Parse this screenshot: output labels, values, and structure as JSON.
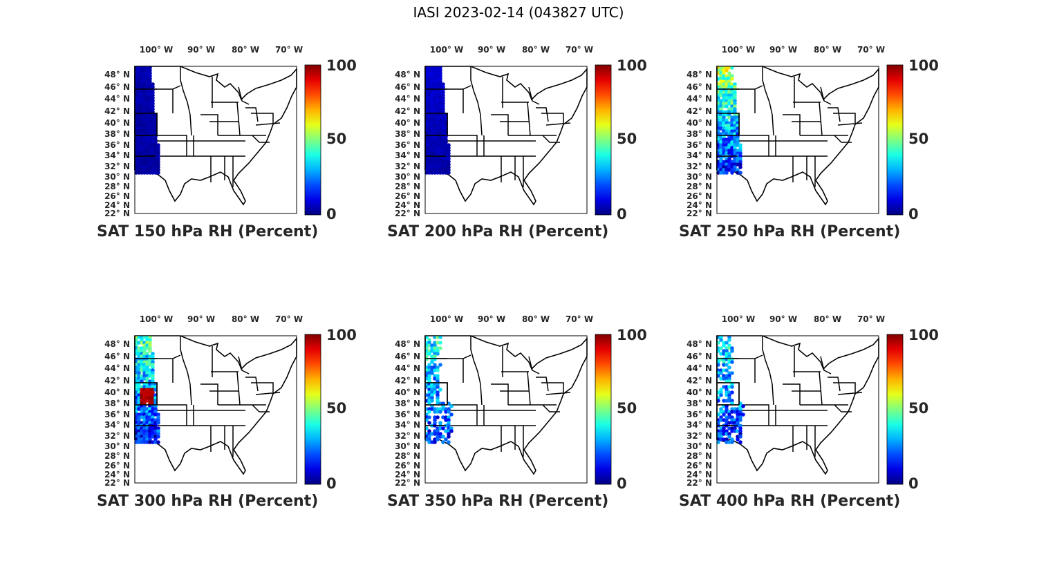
{
  "figure": {
    "title": "IASI 2023-02-14 (043827 UTC)"
  },
  "lon_ticks": [
    "100° W",
    "90° W",
    "80° W",
    "70° W"
  ],
  "lat_ticks": [
    "48° N",
    "46° N",
    "44° N",
    "42° N",
    "40° N",
    "38° N",
    "36° N",
    "34° N",
    "32° N",
    "30° N",
    "28° N",
    "26° N",
    "24° N",
    "22° N"
  ],
  "colorbar": {
    "ticks": [
      "100",
      "50",
      "0"
    ],
    "colormap": "jet",
    "range": [
      0,
      100
    ]
  },
  "panels": [
    {
      "caption": "SAT 150 hPa RH (Percent)",
      "level_hpa": 150,
      "rh_south": 3,
      "rh_north": 5,
      "moist_band": false
    },
    {
      "caption": "SAT 200 hPa RH (Percent)",
      "level_hpa": 200,
      "rh_south": 4,
      "rh_north": 8,
      "moist_band": false
    },
    {
      "caption": "SAT 250 hPa RH (Percent)",
      "level_hpa": 250,
      "rh_south": 12,
      "rh_north": 55,
      "moist_band": false
    },
    {
      "caption": "SAT 300 hPa RH (Percent)",
      "level_hpa": 300,
      "rh_south": 12,
      "rh_north": 45,
      "moist_band": true
    },
    {
      "caption": "SAT 350 hPa RH (Percent)",
      "level_hpa": 350,
      "rh_south": 15,
      "rh_north": 40,
      "moist_band": false
    },
    {
      "caption": "SAT 400 hPa RH (Percent)",
      "level_hpa": 400,
      "rh_south": 15,
      "rh_north": 38,
      "moist_band": false
    }
  ]
}
